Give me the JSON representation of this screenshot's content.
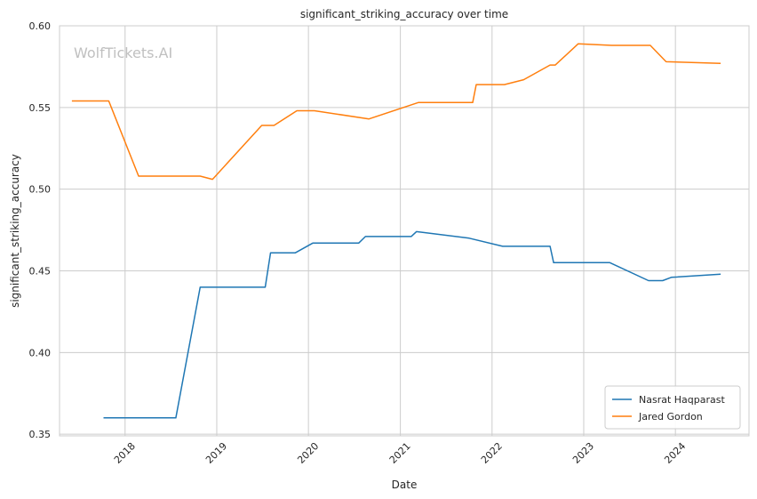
{
  "watermark": "WolfTickets.AI",
  "chart_data": {
    "type": "line",
    "title": "significant_striking_accuracy over time",
    "xlabel": "Date",
    "ylabel": "significant_striking_accuracy",
    "ylim": [
      0.349,
      0.6
    ],
    "xlim": [
      "2017-04-15",
      "2024-10-20"
    ],
    "grid": true,
    "legend_position": "bottom-right",
    "x_ticks": [
      "2018",
      "2019",
      "2020",
      "2021",
      "2022",
      "2023",
      "2024"
    ],
    "x_tick_dates": [
      "2018-01-01",
      "2019-01-01",
      "2020-01-01",
      "2021-01-01",
      "2022-01-01",
      "2023-01-01",
      "2024-01-01"
    ],
    "y_ticks": [
      0.35,
      0.4,
      0.45,
      0.5,
      0.55,
      0.6
    ],
    "y_tick_labels": [
      "0.35",
      "0.40",
      "0.45",
      "0.50",
      "0.55",
      "0.60"
    ],
    "series": [
      {
        "name": "Nasrat Haqparast",
        "color": "#1f77b4",
        "points": [
          [
            "2017-10-07",
            0.36
          ],
          [
            "2018-07-22",
            0.36
          ],
          [
            "2018-10-27",
            0.44
          ],
          [
            "2019-07-13",
            0.44
          ],
          [
            "2019-08-03",
            0.461
          ],
          [
            "2019-11-09",
            0.461
          ],
          [
            "2020-01-18",
            0.467
          ],
          [
            "2020-07-19",
            0.467
          ],
          [
            "2020-08-15",
            0.471
          ],
          [
            "2021-02-13",
            0.471
          ],
          [
            "2021-03-06",
            0.474
          ],
          [
            "2021-10-02",
            0.47
          ],
          [
            "2022-02-12",
            0.465
          ],
          [
            "2022-08-20",
            0.465
          ],
          [
            "2022-09-03",
            0.455
          ],
          [
            "2023-04-15",
            0.455
          ],
          [
            "2023-09-16",
            0.444
          ],
          [
            "2023-11-11",
            0.444
          ],
          [
            "2023-12-16",
            0.446
          ],
          [
            "2024-06-29",
            0.448
          ]
        ]
      },
      {
        "name": "Jared Gordon",
        "color": "#ff7f0e",
        "points": [
          [
            "2017-06-03",
            0.554
          ],
          [
            "2017-10-28",
            0.554
          ],
          [
            "2018-02-24",
            0.508
          ],
          [
            "2018-10-27",
            0.508
          ],
          [
            "2018-12-15",
            0.506
          ],
          [
            "2019-06-29",
            0.539
          ],
          [
            "2019-08-17",
            0.539
          ],
          [
            "2019-11-16",
            0.548
          ],
          [
            "2020-01-25",
            0.548
          ],
          [
            "2020-08-29",
            0.543
          ],
          [
            "2021-03-13",
            0.553
          ],
          [
            "2021-10-16",
            0.553
          ],
          [
            "2021-10-30",
            0.564
          ],
          [
            "2022-02-19",
            0.564
          ],
          [
            "2022-05-07",
            0.567
          ],
          [
            "2022-08-20",
            0.576
          ],
          [
            "2022-09-10",
            0.576
          ],
          [
            "2022-12-10",
            0.589
          ],
          [
            "2023-04-22",
            0.588
          ],
          [
            "2023-09-23",
            0.588
          ],
          [
            "2023-11-25",
            0.578
          ],
          [
            "2024-06-29",
            0.577
          ]
        ]
      }
    ]
  }
}
